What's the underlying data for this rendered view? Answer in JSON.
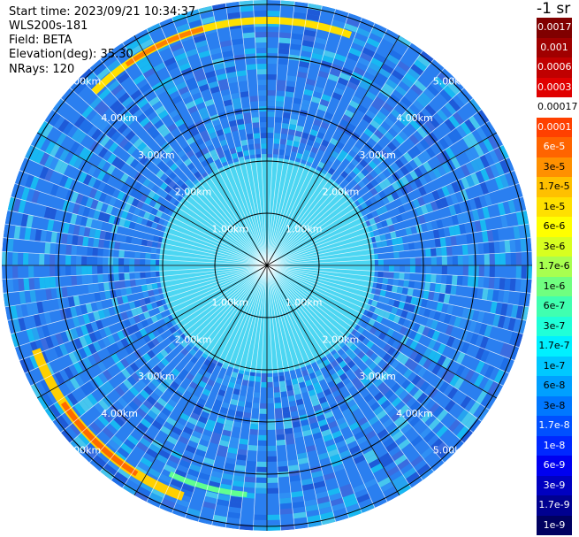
{
  "info": {
    "start_time": "Start time: 2023/09/21 10:34:37",
    "instrument": "WLS200s-181",
    "field": "Field: BETA",
    "elevation": "Elevation(deg): 35.30",
    "nrays": "NRays: 120"
  },
  "colorbar": {
    "unit": "-1 sr",
    "items": [
      {
        "label": "0.0017",
        "color": "#800000",
        "text": "#ffffff"
      },
      {
        "label": "0.001",
        "color": "#a00000",
        "text": "#ffffff"
      },
      {
        "label": "0.0006",
        "color": "#c00000",
        "text": "#ffffff"
      },
      {
        "label": "0.0003",
        "color": "#e00000",
        "text": "#ffffff"
      },
      {
        "label": "0.00017",
        "color": "#ffffff",
        "text": "#000000"
      },
      {
        "label": "0.0001",
        "color": "#ff4000",
        "text": "#ffffff"
      },
      {
        "label": "6e-5",
        "color": "#ff6400",
        "text": "#ffffff"
      },
      {
        "label": "3e-5",
        "color": "#ff9000",
        "text": "#000000"
      },
      {
        "label": "1.7e-5",
        "color": "#ffc000",
        "text": "#000000"
      },
      {
        "label": "1e-5",
        "color": "#ffe000",
        "text": "#000000"
      },
      {
        "label": "6e-6",
        "color": "#ffff00",
        "text": "#000000"
      },
      {
        "label": "3e-6",
        "color": "#d8ff20",
        "text": "#000000"
      },
      {
        "label": "1.7e-6",
        "color": "#a8ff50",
        "text": "#000000"
      },
      {
        "label": "1e-6",
        "color": "#70ff80",
        "text": "#000000"
      },
      {
        "label": "6e-7",
        "color": "#40ffb0",
        "text": "#000000"
      },
      {
        "label": "3e-7",
        "color": "#20ffd8",
        "text": "#000000"
      },
      {
        "label": "1.7e-7",
        "color": "#00f0ff",
        "text": "#000000"
      },
      {
        "label": "1e-7",
        "color": "#00c8ff",
        "text": "#000000"
      },
      {
        "label": "6e-8",
        "color": "#00a0ff",
        "text": "#000000"
      },
      {
        "label": "3e-8",
        "color": "#0078ff",
        "text": "#000000"
      },
      {
        "label": "1.7e-8",
        "color": "#0050ff",
        "text": "#ffffff"
      },
      {
        "label": "1e-8",
        "color": "#0028ff",
        "text": "#ffffff"
      },
      {
        "label": "6e-9",
        "color": "#0000f0",
        "text": "#ffffff"
      },
      {
        "label": "3e-9",
        "color": "#0000c0",
        "text": "#ffffff"
      },
      {
        "label": "1.7e-9",
        "color": "#000090",
        "text": "#ffffff"
      },
      {
        "label": "1e-9",
        "color": "#000060",
        "text": "#ffffff"
      }
    ]
  },
  "range_rings": {
    "labels": [
      "1.00km",
      "2.00km",
      "3.00km",
      "4.00km",
      "5.00km"
    ]
  },
  "colors": {
    "far_background": "#2a7ff0",
    "near_background": "#4cd6f2"
  }
}
